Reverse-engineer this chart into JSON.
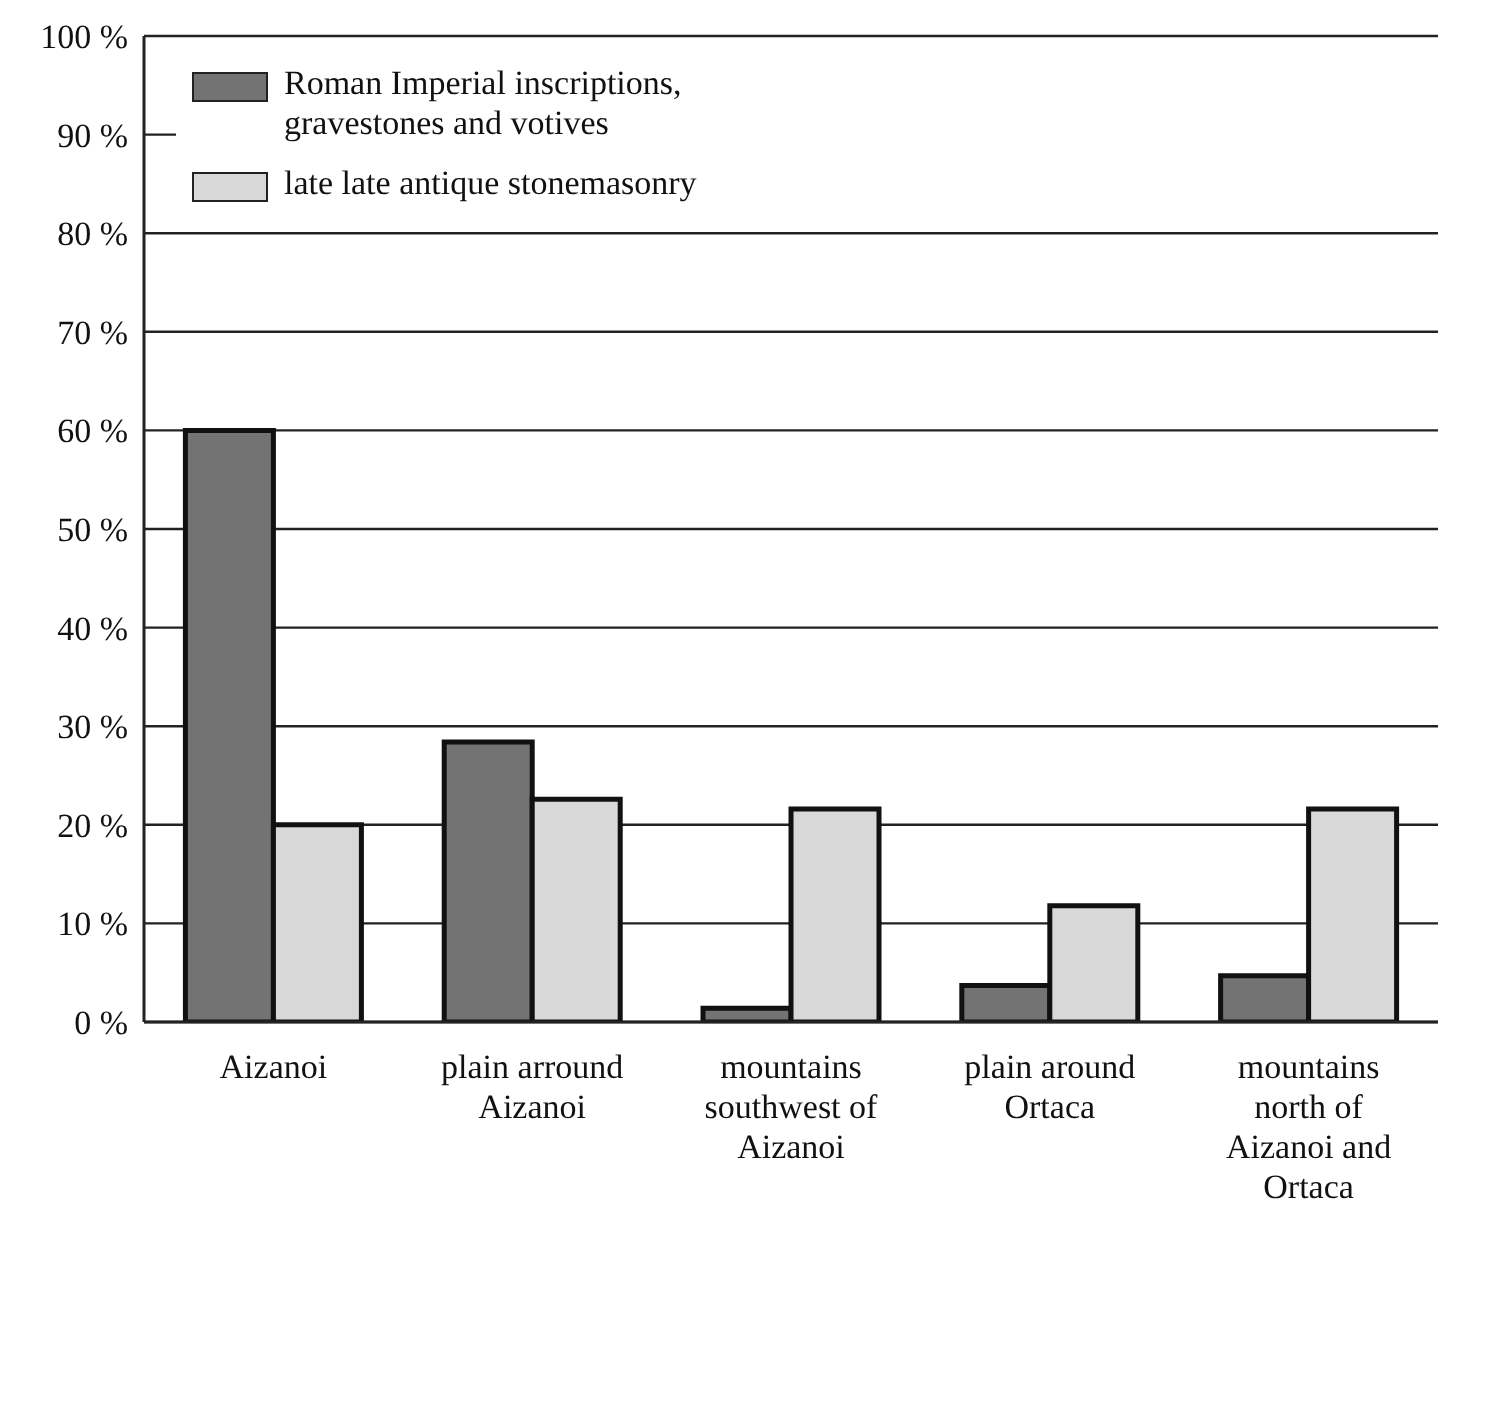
{
  "chart_data": {
    "type": "bar",
    "categories": [
      "Aizanoi",
      "plain arround Aizanoi",
      "mountains southwest of Aizanoi",
      "plain around Ortaca",
      "mountains north of Aizanoi and Ortaca"
    ],
    "series": [
      {
        "name": "Roman Imperial inscriptions, gravestones and votives",
        "color": "#737373",
        "values": [
          60,
          28.4,
          1.4,
          3.7,
          4.7
        ]
      },
      {
        "name": "late late antique stonemasonry",
        "color": "#d8d8d8",
        "values": [
          20,
          22.6,
          21.6,
          11.8,
          21.6
        ]
      }
    ],
    "ylim": [
      0,
      100
    ],
    "yticks": [
      {
        "value": 0,
        "label": "0 %"
      },
      {
        "value": 10,
        "label": "10 %"
      },
      {
        "value": 20,
        "label": "20 %"
      },
      {
        "value": 30,
        "label": "30 %"
      },
      {
        "value": 40,
        "label": "40 %"
      },
      {
        "value": 50,
        "label": "50 %"
      },
      {
        "value": 60,
        "label": "60 %"
      },
      {
        "value": 70,
        "label": "70 %"
      },
      {
        "value": 80,
        "label": "80 %"
      },
      {
        "value": 90,
        "label": "90 %"
      },
      {
        "value": 100,
        "label": "100 %"
      }
    ],
    "grid": "y",
    "legend": "top left"
  }
}
